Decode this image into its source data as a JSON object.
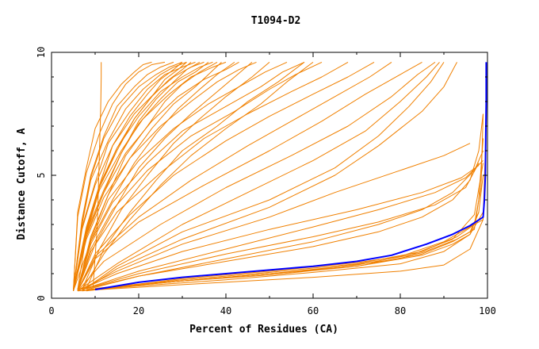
{
  "chart_data": {
    "type": "line",
    "title": "T1094-D2",
    "xlabel": "Percent of Residues (CA)",
    "ylabel": "Distance Cutoff, A",
    "xlim": [
      0,
      100
    ],
    "ylim": [
      0,
      10
    ],
    "x_ticks": [
      0,
      20,
      40,
      60,
      80,
      100
    ],
    "y_ticks": [
      0,
      5,
      10
    ],
    "grid": false,
    "colors": {
      "models": "#f08000",
      "highlight": "#0000ff",
      "axis": "#000000"
    },
    "series": [
      {
        "x": [
          10,
          20,
          30,
          40,
          50,
          60,
          70,
          78,
          86,
          92,
          96,
          99,
          99.3,
          99.5,
          99.6,
          99.7,
          99.7
        ],
        "y": [
          0.35,
          0.65,
          0.85,
          1.0,
          1.15,
          1.3,
          1.5,
          1.75,
          2.2,
          2.6,
          2.95,
          3.3,
          4.0,
          5.0,
          6.5,
          8.0,
          9.6
        ]
      },
      {
        "x": [
          10,
          30,
          50,
          70,
          80,
          90,
          96,
          99,
          99.5
        ],
        "y": [
          0.35,
          0.8,
          1.1,
          1.45,
          1.7,
          2.3,
          2.9,
          3.2,
          6.0
        ]
      },
      {
        "x": [
          10,
          30,
          50,
          70,
          85,
          93,
          97,
          98.5,
          99
        ],
        "y": [
          0.4,
          0.75,
          1.05,
          1.4,
          1.9,
          2.5,
          3.0,
          4.5,
          7.5
        ]
      },
      {
        "x": [
          9,
          30,
          50,
          70,
          85,
          93,
          97,
          98,
          99
        ],
        "y": [
          0.35,
          0.7,
          1.0,
          1.35,
          1.85,
          2.4,
          2.8,
          4.0,
          6.5
        ]
      },
      {
        "x": [
          9,
          30,
          50,
          70,
          85,
          92,
          96,
          98,
          99
        ],
        "y": [
          0.35,
          0.7,
          1.0,
          1.3,
          1.8,
          2.3,
          2.7,
          3.5,
          5.0
        ]
      },
      {
        "x": [
          8,
          30,
          50,
          70,
          85,
          92,
          96,
          98
        ],
        "y": [
          0.35,
          0.7,
          0.95,
          1.3,
          1.75,
          2.2,
          2.6,
          3.5
        ]
      },
      {
        "x": [
          8,
          20,
          40,
          60,
          80,
          92,
          97,
          99
        ],
        "y": [
          0.3,
          0.55,
          0.85,
          1.15,
          1.6,
          2.4,
          3.4,
          5.5
        ]
      },
      {
        "x": [
          7,
          20,
          40,
          60,
          80,
          90,
          96,
          99
        ],
        "y": [
          0.3,
          0.5,
          0.75,
          1.05,
          1.4,
          1.9,
          2.6,
          3.5
        ]
      },
      {
        "x": [
          6,
          30,
          60,
          80,
          90,
          96,
          99
        ],
        "y": [
          0.3,
          0.55,
          0.85,
          1.1,
          1.35,
          2.0,
          3.2
        ]
      },
      {
        "x": [
          8,
          20,
          40,
          60,
          75,
          85,
          92,
          96,
          98,
          99
        ],
        "y": [
          0.35,
          0.9,
          1.5,
          2.1,
          2.7,
          3.3,
          4.0,
          4.8,
          6.0,
          7.5
        ]
      },
      {
        "x": [
          7,
          20,
          40,
          60,
          75,
          85,
          92,
          97,
          99
        ],
        "y": [
          0.35,
          0.9,
          1.6,
          2.3,
          3.0,
          3.6,
          4.3,
          5.2,
          6.0
        ]
      },
      {
        "x": [
          7,
          20,
          40,
          60,
          75,
          88,
          95,
          98
        ],
        "y": [
          0.35,
          1.0,
          1.8,
          2.5,
          3.1,
          3.8,
          4.5,
          5.5
        ]
      },
      {
        "x": [
          7,
          20,
          40,
          60,
          75,
          88,
          95,
          99
        ],
        "y": [
          0.35,
          1.1,
          2.0,
          2.9,
          3.6,
          4.3,
          4.9,
          5.6
        ]
      },
      {
        "x": [
          6,
          15,
          30,
          50,
          70,
          85,
          94,
          98
        ],
        "y": [
          0.3,
          1.0,
          1.9,
          2.8,
          3.6,
          4.3,
          4.9,
          5.4
        ]
      },
      {
        "x": [
          6,
          15,
          30,
          50,
          65,
          80,
          90,
          96
        ],
        "y": [
          0.3,
          1.1,
          2.2,
          3.3,
          4.3,
          5.2,
          5.8,
          6.3
        ]
      },
      {
        "x": [
          7,
          15,
          30,
          50,
          65,
          75,
          85,
          90,
          93
        ],
        "y": [
          0.3,
          1.2,
          2.4,
          3.7,
          5.0,
          6.2,
          7.6,
          8.6,
          9.6
        ]
      },
      {
        "x": [
          7,
          15,
          30,
          50,
          65,
          75,
          82,
          87,
          90
        ],
        "y": [
          0.3,
          1.3,
          2.7,
          4.0,
          5.3,
          6.6,
          7.8,
          8.8,
          9.6
        ]
      },
      {
        "x": [
          6,
          15,
          30,
          45,
          60,
          72,
          80,
          86,
          89
        ],
        "y": [
          0.3,
          1.4,
          3.0,
          4.3,
          5.6,
          6.8,
          8.0,
          9.0,
          9.6
        ]
      },
      {
        "x": [
          6,
          12,
          25,
          40,
          55,
          68,
          78,
          84,
          88
        ],
        "y": [
          0.3,
          1.5,
          3.0,
          4.5,
          5.8,
          7.0,
          8.2,
          9.1,
          9.6
        ]
      },
      {
        "x": [
          6,
          10,
          20,
          35,
          50,
          62,
          72,
          80,
          85
        ],
        "y": [
          0.3,
          1.6,
          3.1,
          4.6,
          6.0,
          7.2,
          8.3,
          9.1,
          9.6
        ]
      },
      {
        "x": [
          6,
          10,
          20,
          32,
          45,
          55,
          65,
          73,
          78
        ],
        "y": [
          0.3,
          1.7,
          3.3,
          4.8,
          6.2,
          7.2,
          8.2,
          9.0,
          9.6
        ]
      },
      {
        "x": [
          6,
          10,
          18,
          28,
          40,
          50,
          60,
          68,
          74
        ],
        "y": [
          0.3,
          1.8,
          3.4,
          5.0,
          6.4,
          7.4,
          8.3,
          9.0,
          9.6
        ]
      },
      {
        "x": [
          6,
          9,
          15,
          25,
          35,
          45,
          55,
          62,
          68
        ],
        "y": [
          0.3,
          1.9,
          3.5,
          5.1,
          6.5,
          7.5,
          8.4,
          9.0,
          9.6
        ]
      },
      {
        "x": [
          6,
          9,
          14,
          22,
          32,
          42,
          50,
          56,
          62
        ],
        "y": [
          0.3,
          2.0,
          3.6,
          5.2,
          6.6,
          7.6,
          8.5,
          9.1,
          9.6
        ]
      },
      {
        "x": [
          6,
          9,
          14,
          22,
          30,
          40,
          48,
          53,
          58
        ],
        "y": [
          0.3,
          2.2,
          3.9,
          5.5,
          6.8,
          7.8,
          8.6,
          9.2,
          9.6
        ]
      },
      {
        "x": [
          5,
          9,
          13,
          20,
          28,
          36,
          44,
          49,
          54
        ],
        "y": [
          0.3,
          2.3,
          4.0,
          5.6,
          6.9,
          7.9,
          8.7,
          9.2,
          9.6
        ]
      },
      {
        "x": [
          5,
          8,
          12,
          18,
          25,
          32,
          38,
          43,
          47
        ],
        "y": [
          0.3,
          2.4,
          4.1,
          5.7,
          7.0,
          8.0,
          8.8,
          9.3,
          9.6
        ]
      },
      {
        "x": [
          5,
          8,
          12,
          17,
          23,
          29,
          35,
          40,
          43
        ],
        "y": [
          0.3,
          2.5,
          4.3,
          5.9,
          7.2,
          8.2,
          8.9,
          9.3,
          9.6
        ]
      },
      {
        "x": [
          5,
          8,
          11,
          16,
          21,
          27,
          32,
          37,
          40
        ],
        "y": [
          0.3,
          2.6,
          4.4,
          6.0,
          7.3,
          8.3,
          9.0,
          9.4,
          9.6
        ]
      },
      {
        "x": [
          5,
          8,
          11,
          15,
          20,
          25,
          30,
          34,
          37
        ],
        "y": [
          0.3,
          2.7,
          4.5,
          6.1,
          7.4,
          8.4,
          9.0,
          9.4,
          9.6
        ]
      },
      {
        "x": [
          5,
          7,
          10,
          14,
          19,
          24,
          28,
          32,
          35
        ],
        "y": [
          0.3,
          2.8,
          4.6,
          6.2,
          7.5,
          8.4,
          9.0,
          9.4,
          9.6
        ]
      },
      {
        "x": [
          5,
          7,
          10,
          13,
          18,
          22,
          26,
          30,
          33
        ],
        "y": [
          0.3,
          2.9,
          4.7,
          6.3,
          7.6,
          8.5,
          9.1,
          9.4,
          9.6
        ]
      },
      {
        "x": [
          5,
          7,
          9,
          13,
          17,
          21,
          25,
          28,
          31
        ],
        "y": [
          0.3,
          3.0,
          4.8,
          6.4,
          7.7,
          8.5,
          9.1,
          9.4,
          9.6
        ]
      },
      {
        "x": [
          5,
          7,
          9,
          12,
          16,
          20,
          24,
          27,
          30
        ],
        "y": [
          0.3,
          3.1,
          4.9,
          6.5,
          7.8,
          8.6,
          9.1,
          9.4,
          9.6
        ]
      },
      {
        "x": [
          5,
          7,
          9,
          12,
          15,
          19,
          22,
          25,
          28
        ],
        "y": [
          0.3,
          3.2,
          5.0,
          6.6,
          7.8,
          8.6,
          9.1,
          9.4,
          9.6
        ]
      },
      {
        "x": [
          5,
          6,
          8,
          11,
          14,
          17,
          20,
          23,
          26
        ],
        "y": [
          0.3,
          3.3,
          5.1,
          6.7,
          7.9,
          8.7,
          9.2,
          9.5,
          9.6
        ]
      },
      {
        "x": [
          5,
          6,
          8,
          10,
          13,
          16,
          19,
          21,
          23
        ],
        "y": [
          0.3,
          3.5,
          5.3,
          6.9,
          8.0,
          8.7,
          9.2,
          9.5,
          9.6
        ]
      },
      {
        "x": [
          9.5,
          10.5,
          11,
          11.2,
          11.3,
          11.4,
          11.4
        ],
        "y": [
          0.4,
          3.0,
          6.0,
          7.2,
          8.0,
          9.0,
          9.6
        ]
      },
      {
        "x": [
          8,
          12,
          18,
          24,
          30,
          38,
          45,
          52,
          58
        ],
        "y": [
          0.4,
          2.0,
          3.5,
          4.8,
          6.0,
          7.0,
          8.0,
          8.8,
          9.6
        ]
      },
      {
        "x": [
          7,
          12,
          18,
          25,
          32,
          40,
          48,
          54,
          60
        ],
        "y": [
          0.35,
          1.8,
          3.2,
          4.6,
          5.8,
          6.9,
          7.9,
          8.8,
          9.6
        ]
      },
      {
        "x": [
          7,
          11,
          16,
          22,
          28,
          34,
          40,
          46,
          50
        ],
        "y": [
          0.35,
          2.0,
          3.6,
          5.0,
          6.3,
          7.3,
          8.2,
          9.0,
          9.6
        ]
      },
      {
        "x": [
          6,
          10,
          15,
          20,
          26,
          32,
          38,
          42,
          46
        ],
        "y": [
          0.35,
          2.2,
          3.8,
          5.3,
          6.5,
          7.5,
          8.4,
          9.0,
          9.6
        ]
      },
      {
        "x": [
          6,
          9,
          14,
          19,
          24,
          29,
          34,
          38,
          42
        ],
        "y": [
          0.35,
          2.3,
          4.0,
          5.5,
          6.7,
          7.7,
          8.5,
          9.1,
          9.6
        ]
      },
      {
        "x": [
          6,
          9,
          13,
          18,
          23,
          28,
          33,
          36,
          39
        ],
        "y": [
          0.35,
          2.4,
          4.2,
          5.7,
          6.9,
          7.9,
          8.6,
          9.1,
          9.6
        ]
      },
      {
        "x": [
          6,
          9,
          13,
          17,
          22,
          26,
          30,
          34,
          38
        ],
        "y": [
          0.35,
          2.5,
          4.2,
          5.8,
          7.0,
          8.0,
          8.7,
          9.2,
          9.6
        ]
      },
      {
        "x": [
          6,
          8,
          12,
          16,
          20,
          25,
          29,
          33,
          36
        ],
        "y": [
          0.35,
          2.6,
          4.3,
          5.9,
          7.1,
          8.1,
          8.8,
          9.2,
          9.6
        ]
      },
      {
        "x": [
          5,
          8,
          12,
          16,
          20,
          24,
          28,
          31,
          34
        ],
        "y": [
          0.35,
          2.7,
          4.4,
          5.9,
          7.2,
          8.1,
          8.8,
          9.3,
          9.6
        ]
      },
      {
        "x": [
          5,
          8,
          11,
          15,
          19,
          23,
          27,
          30,
          32
        ],
        "y": [
          0.35,
          2.8,
          4.5,
          6.0,
          7.3,
          8.2,
          8.9,
          9.3,
          9.6
        ]
      },
      {
        "x": [
          5,
          8,
          11,
          15,
          19,
          23,
          26,
          29,
          31
        ],
        "y": [
          0.35,
          2.8,
          4.6,
          6.1,
          7.3,
          8.2,
          8.9,
          9.3,
          9.6
        ]
      },
      {
        "x": [
          5,
          8,
          11,
          14,
          18,
          22,
          25,
          28,
          30
        ],
        "y": [
          0.35,
          2.9,
          4.6,
          6.2,
          7.4,
          8.3,
          8.9,
          9.3,
          9.6
        ]
      }
    ]
  }
}
